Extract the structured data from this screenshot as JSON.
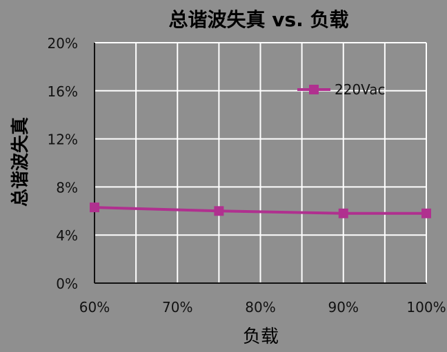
{
  "colors": {
    "background": "#8f8f8f",
    "plot_background": "#8f8f8f",
    "grid": "#ffffff",
    "axis": "#111111",
    "text": "#111111",
    "series": "#b0308f"
  },
  "chart_data": {
    "type": "line",
    "title": "总谐波失真 vs. 负载",
    "xlabel": "负载",
    "ylabel": "总谐波失真",
    "x_tick_labels": [
      "60%",
      "70%",
      "80%",
      "90%",
      "100%"
    ],
    "y_tick_labels": [
      "0%",
      "4%",
      "8%",
      "12%",
      "16%",
      "20%"
    ],
    "xlim": [
      60,
      100
    ],
    "ylim": [
      0,
      20
    ],
    "grid": true,
    "legend_position": "top-right",
    "series": [
      {
        "name": "220Vac",
        "color": "#b0308f",
        "marker": "square",
        "x": [
          60,
          75,
          90,
          100
        ],
        "y": [
          6.3,
          6.0,
          5.8,
          5.8
        ]
      }
    ]
  }
}
